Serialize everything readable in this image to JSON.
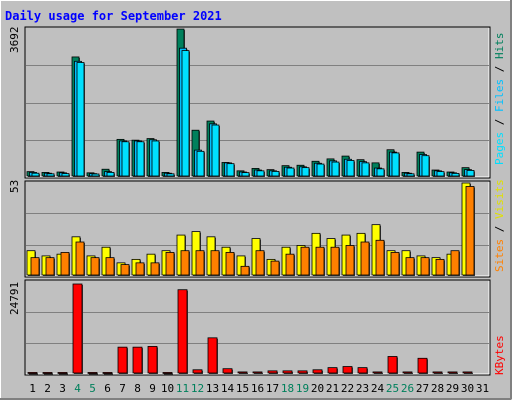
{
  "title": "Daily usage for September 2021",
  "colors": {
    "background": "#c0c0c0",
    "title": "#0000ff",
    "hits": "#00805c",
    "files": "#00c0ff",
    "pages": "#00e0ff",
    "visits": "#ffff00",
    "sites": "#ff8000",
    "kbytes": "#ff0000",
    "weekend_label": "#00805c",
    "weekday_label": "#000000",
    "grid": "#808080"
  },
  "axis_labels": {
    "top_max": "3692",
    "middle_max": "53",
    "bottom_max": "24791"
  },
  "legends": {
    "top": [
      "Pages",
      "Files",
      "Hits"
    ],
    "middle": [
      "Sites",
      "Visits"
    ],
    "bottom": [
      "KBytes"
    ]
  },
  "chart_data": [
    {
      "type": "bar",
      "panel": "hits-files-pages",
      "ylim": [
        0,
        3692
      ],
      "categories": [
        "1",
        "2",
        "3",
        "4",
        "5",
        "6",
        "7",
        "8",
        "9",
        "10",
        "11",
        "12",
        "13",
        "14",
        "15",
        "16",
        "17",
        "18",
        "19",
        "20",
        "21",
        "22",
        "23",
        "24",
        "25",
        "26",
        "27",
        "28",
        "29",
        "30",
        "31"
      ],
      "weekend": [
        4,
        5,
        11,
        12,
        18,
        19,
        25,
        26
      ],
      "series": [
        {
          "name": "Hits",
          "values": [
            110,
            90,
            100,
            2990,
            80,
            170,
            920,
            900,
            940,
            90,
            3690,
            1150,
            1380,
            340,
            130,
            190,
            160,
            260,
            270,
            370,
            430,
            500,
            410,
            330,
            660,
            90,
            600,
            150,
            100,
            210,
            0
          ]
        },
        {
          "name": "Files",
          "values": [
            90,
            70,
            80,
            2880,
            60,
            110,
            880,
            880,
            910,
            70,
            3210,
            650,
            1310,
            330,
            100,
            150,
            130,
            220,
            230,
            320,
            380,
            420,
            360,
            200,
            600,
            70,
            540,
            130,
            80,
            160,
            0
          ]
        },
        {
          "name": "Pages",
          "values": [
            70,
            55,
            60,
            2850,
            50,
            90,
            860,
            860,
            880,
            55,
            3150,
            620,
            1280,
            310,
            85,
            130,
            115,
            200,
            210,
            300,
            350,
            390,
            330,
            180,
            580,
            55,
            510,
            110,
            65,
            140,
            0
          ]
        }
      ]
    },
    {
      "type": "bar",
      "panel": "visits-sites",
      "ylim": [
        0,
        53
      ],
      "categories": [
        "1",
        "2",
        "3",
        "4",
        "5",
        "6",
        "7",
        "8",
        "9",
        "10",
        "11",
        "12",
        "13",
        "14",
        "15",
        "16",
        "17",
        "18",
        "19",
        "20",
        "21",
        "22",
        "23",
        "24",
        "25",
        "26",
        "27",
        "28",
        "29",
        "30",
        "31"
      ],
      "series": [
        {
          "name": "Visits",
          "values": [
            14,
            11,
            12,
            22,
            11,
            16,
            7,
            9,
            12,
            14,
            23,
            25,
            22,
            16,
            11,
            21,
            9,
            16,
            17,
            24,
            21,
            23,
            24,
            29,
            14,
            14,
            11,
            10,
            12,
            53,
            0
          ]
        },
        {
          "name": "Sites",
          "values": [
            10,
            10,
            13,
            19,
            10,
            10,
            6,
            7,
            7,
            13,
            14,
            14,
            14,
            13,
            5,
            14,
            8,
            12,
            16,
            16,
            16,
            17,
            19,
            20,
            13,
            10,
            10,
            9,
            14,
            51,
            0
          ]
        }
      ]
    },
    {
      "type": "bar",
      "panel": "kbytes",
      "ylim": [
        0,
        24791
      ],
      "categories": [
        "1",
        "2",
        "3",
        "4",
        "5",
        "6",
        "7",
        "8",
        "9",
        "10",
        "11",
        "12",
        "13",
        "14",
        "15",
        "16",
        "17",
        "18",
        "19",
        "20",
        "21",
        "22",
        "23",
        "24",
        "25",
        "26",
        "27",
        "28",
        "29",
        "30",
        "31"
      ],
      "series": [
        {
          "name": "KBytes",
          "values": [
            150,
            150,
            150,
            24791,
            150,
            150,
            7200,
            7200,
            7400,
            150,
            23200,
            900,
            9800,
            1200,
            300,
            300,
            600,
            600,
            600,
            900,
            1500,
            1800,
            1500,
            300,
            4600,
            300,
            4100,
            300,
            300,
            300,
            0
          ]
        }
      ]
    }
  ]
}
